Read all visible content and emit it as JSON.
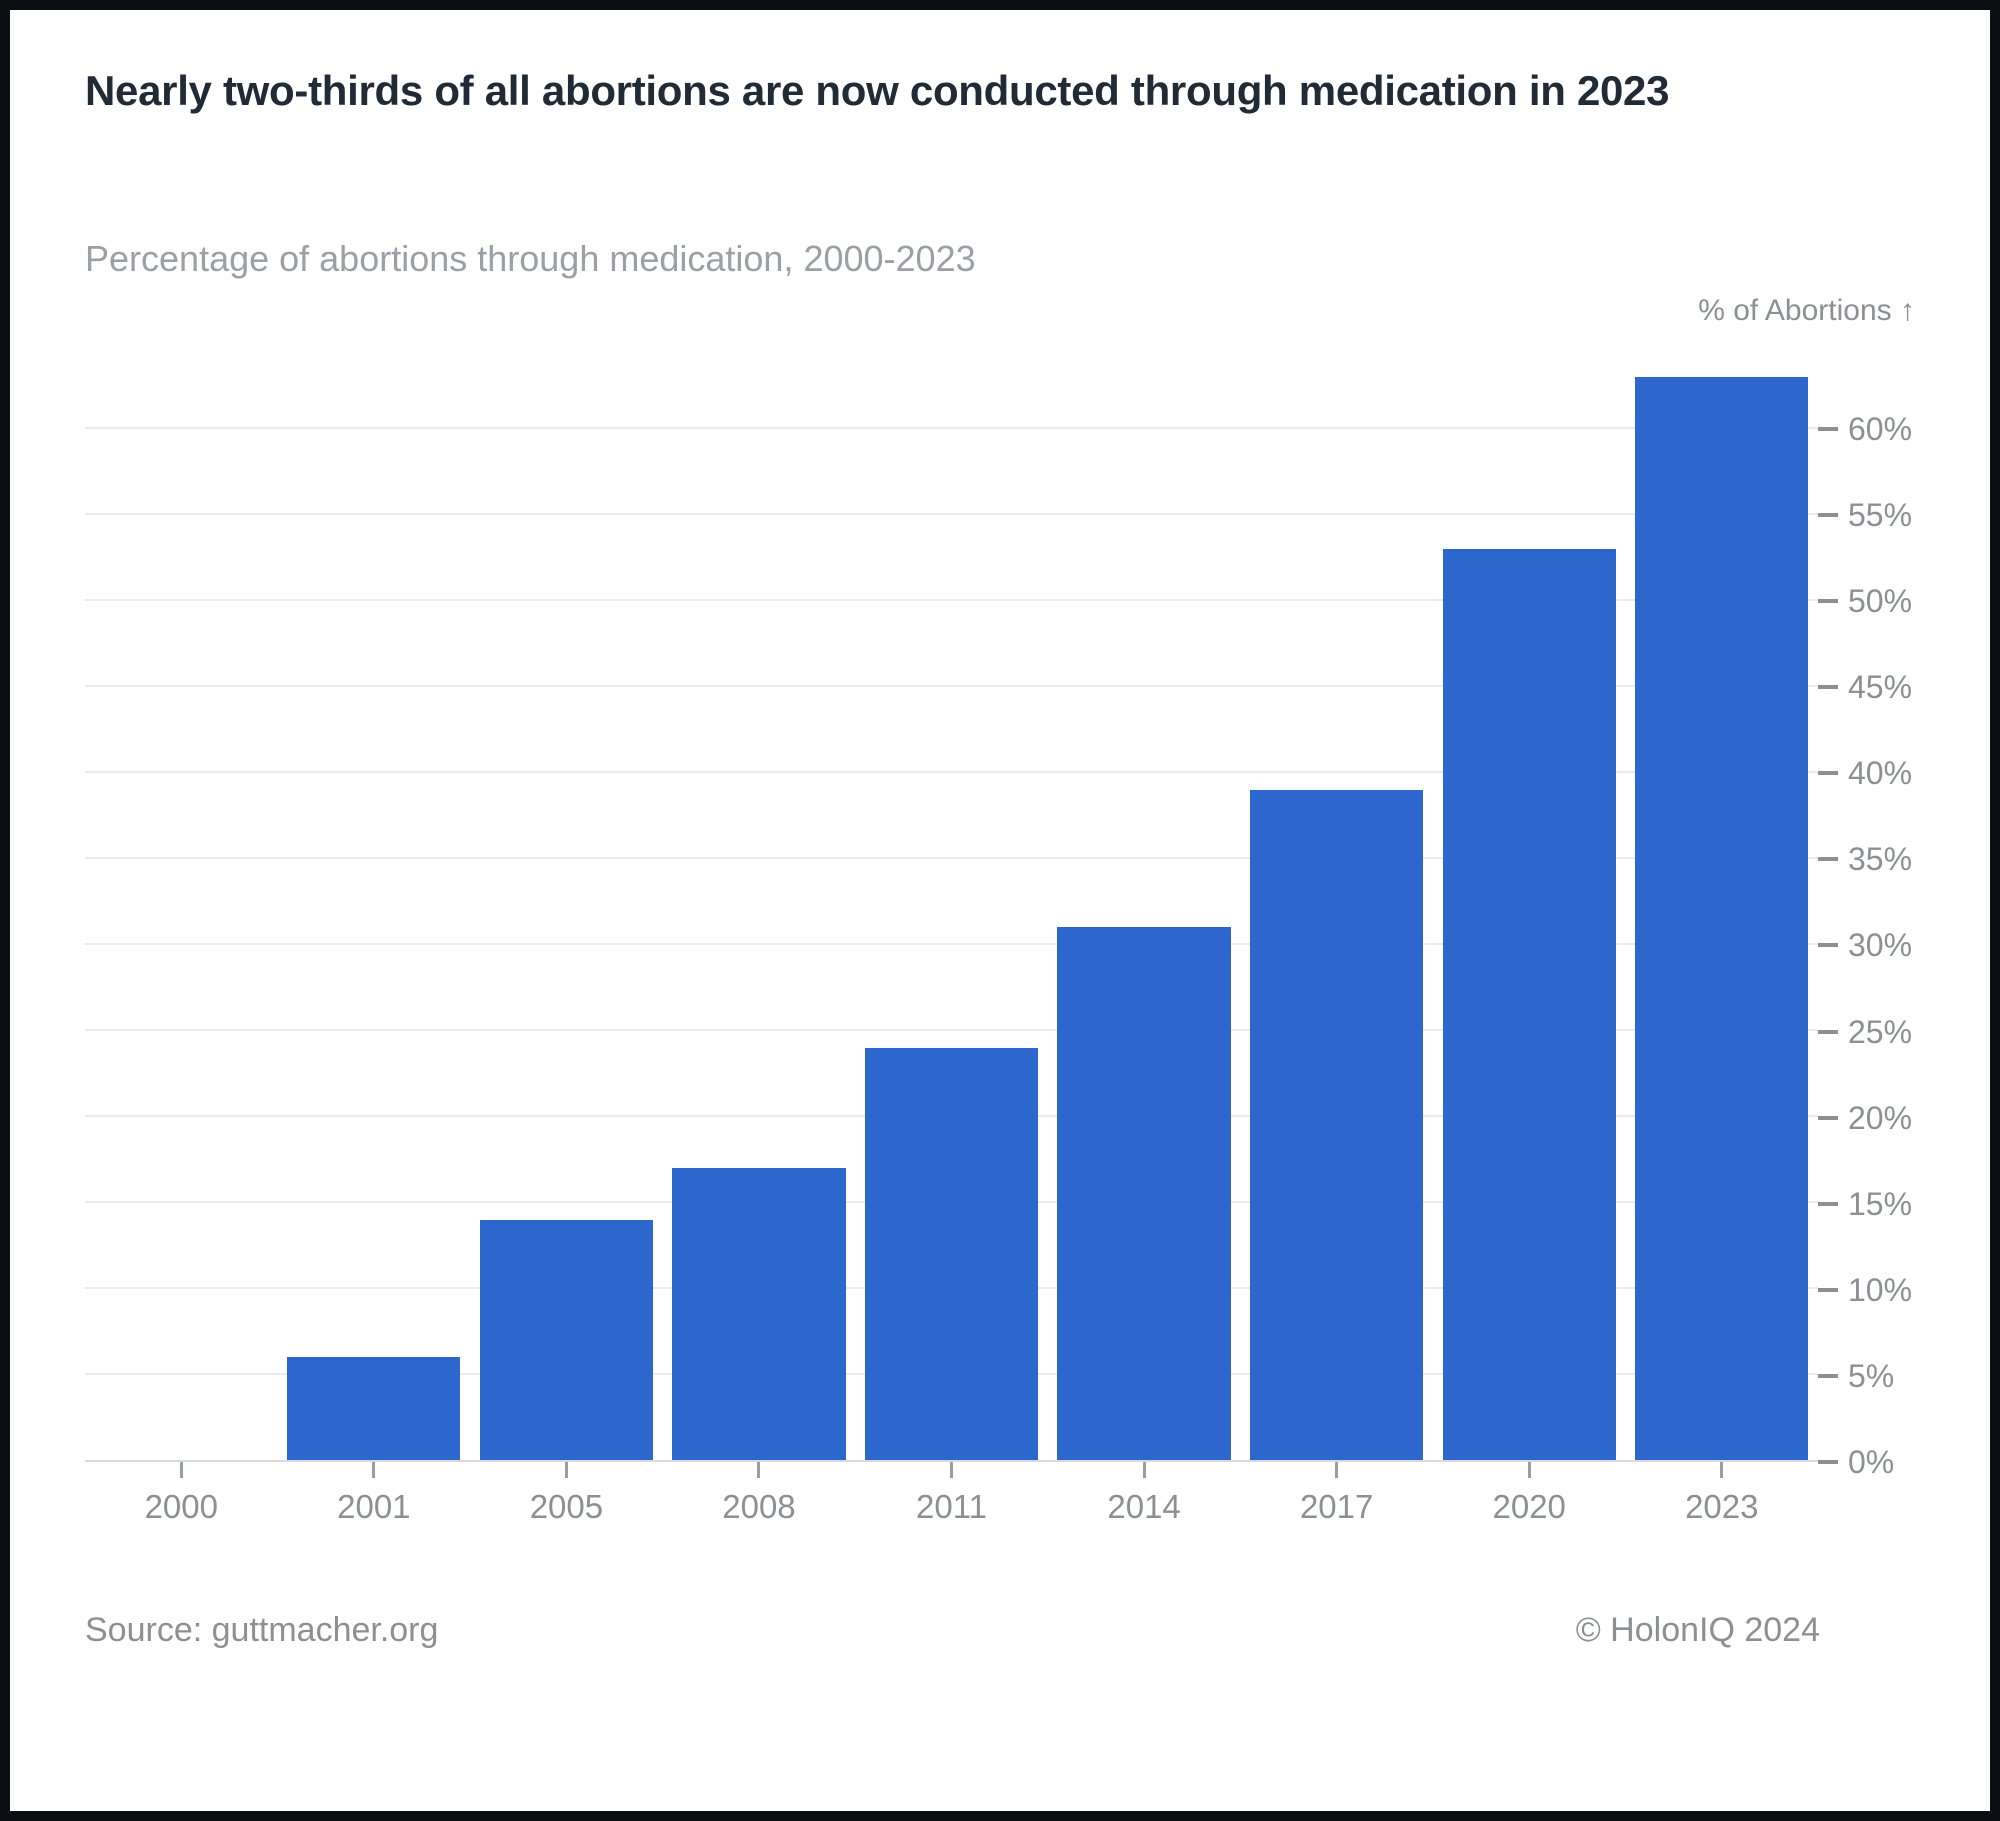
{
  "header": {
    "title": "Nearly two-thirds of all abortions are now conducted through medication in 2023",
    "subtitle": "Percentage of abortions through medication, 2000-2023"
  },
  "chart_data": {
    "type": "bar",
    "title": "Nearly two-thirds of all abortions are now conducted through medication in 2023",
    "subtitle": "Percentage of abortions through medication, 2000-2023",
    "categories": [
      "2000",
      "2001",
      "2005",
      "2008",
      "2011",
      "2014",
      "2017",
      "2020",
      "2023"
    ],
    "values": [
      0,
      6,
      14,
      17,
      24,
      31,
      39,
      53,
      63
    ],
    "xlabel": "",
    "ylabel": "% of Abortions ↑",
    "ylim": [
      0,
      65
    ],
    "yticks": [
      0,
      5,
      10,
      15,
      20,
      25,
      30,
      35,
      40,
      45,
      50,
      55,
      60
    ],
    "ytick_labels": [
      "0%",
      "5%",
      "10%",
      "15%",
      "20%",
      "25%",
      "30%",
      "35%",
      "40%",
      "45%",
      "50%",
      "55%",
      "60%"
    ],
    "grid": true,
    "legend_position": "none",
    "y_axis_side": "right"
  },
  "colors": {
    "bar": "#2d66cc",
    "gridline": "#e9ebee",
    "axis_line": "#d8dadd",
    "tick_mark": "#9a9da1",
    "axis_text": "#8c9094",
    "title_text": "#212b36",
    "subtitle_text": "#9aa0a5",
    "footer_text": "#8c9094",
    "frame": "#0b0e13",
    "card_bg": "#ffffff"
  },
  "footer": {
    "source": "Source: guttmacher.org",
    "copyright": "© HolonIQ 2024"
  }
}
